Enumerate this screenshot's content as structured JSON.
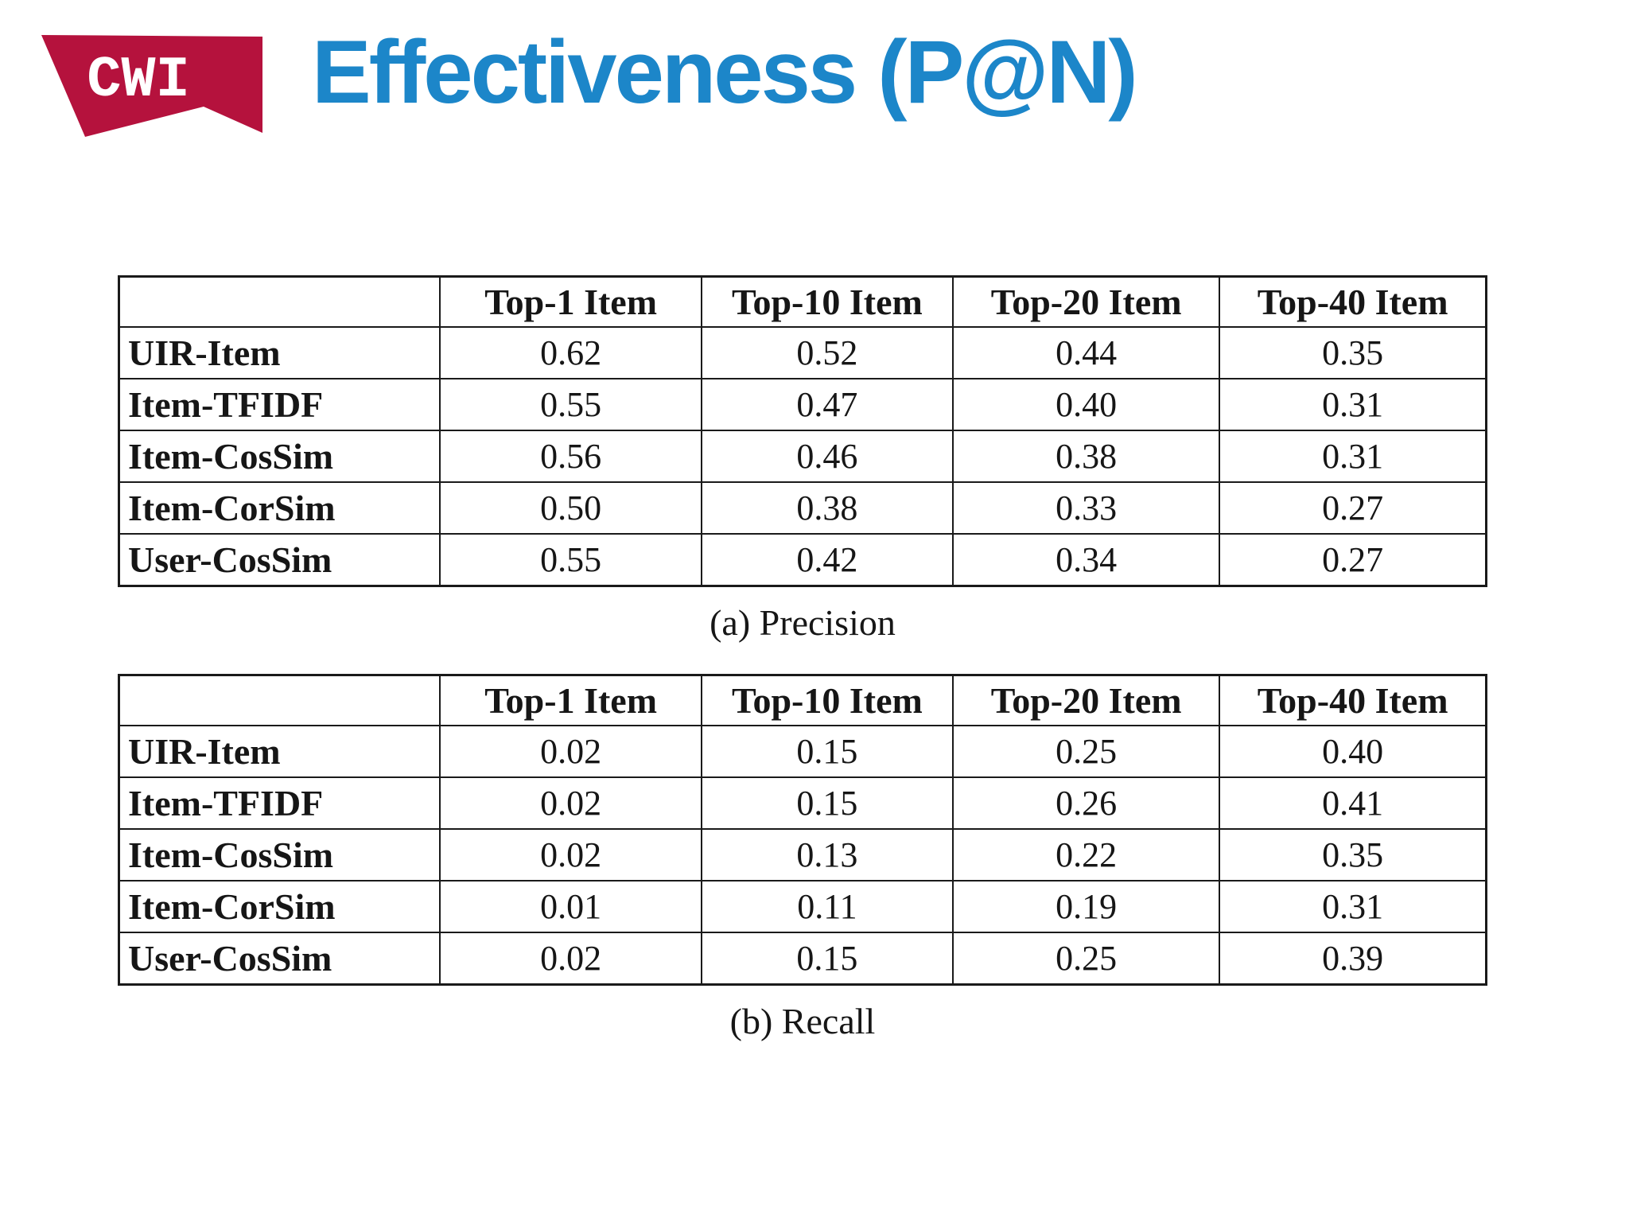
{
  "slide": {
    "logo_text": "CWI",
    "title": "Effectiveness (P@N)",
    "colors": {
      "logo_red": "#b5123d",
      "title_blue": "#1c86c9",
      "table_line": "#1a1a1a"
    }
  },
  "tables": [
    {
      "caption": "(a) Precision",
      "columns": [
        "",
        "Top-1 Item",
        "Top-10 Item",
        "Top-20 Item",
        "Top-40 Item"
      ],
      "rows": [
        {
          "label": "UIR-Item",
          "values": [
            "0.62",
            "0.52",
            "0.44",
            "0.35"
          ]
        },
        {
          "label": "Item-TFIDF",
          "values": [
            "0.55",
            "0.47",
            "0.40",
            "0.31"
          ]
        },
        {
          "label": "Item-CosSim",
          "values": [
            "0.56",
            "0.46",
            "0.38",
            "0.31"
          ]
        },
        {
          "label": "Item-CorSim",
          "values": [
            "0.50",
            "0.38",
            "0.33",
            "0.27"
          ]
        },
        {
          "label": "User-CosSim",
          "values": [
            "0.55",
            "0.42",
            "0.34",
            "0.27"
          ]
        }
      ]
    },
    {
      "caption": "(b) Recall",
      "columns": [
        "",
        "Top-1 Item",
        "Top-10 Item",
        "Top-20 Item",
        "Top-40 Item"
      ],
      "rows": [
        {
          "label": "UIR-Item",
          "values": [
            "0.02",
            "0.15",
            "0.25",
            "0.40"
          ]
        },
        {
          "label": "Item-TFIDF",
          "values": [
            "0.02",
            "0.15",
            "0.26",
            "0.41"
          ]
        },
        {
          "label": "Item-CosSim",
          "values": [
            "0.02",
            "0.13",
            "0.22",
            "0.35"
          ]
        },
        {
          "label": "Item-CorSim",
          "values": [
            "0.01",
            "0.11",
            "0.19",
            "0.31"
          ]
        },
        {
          "label": "User-CosSim",
          "values": [
            "0.02",
            "0.15",
            "0.25",
            "0.39"
          ]
        }
      ]
    }
  ]
}
